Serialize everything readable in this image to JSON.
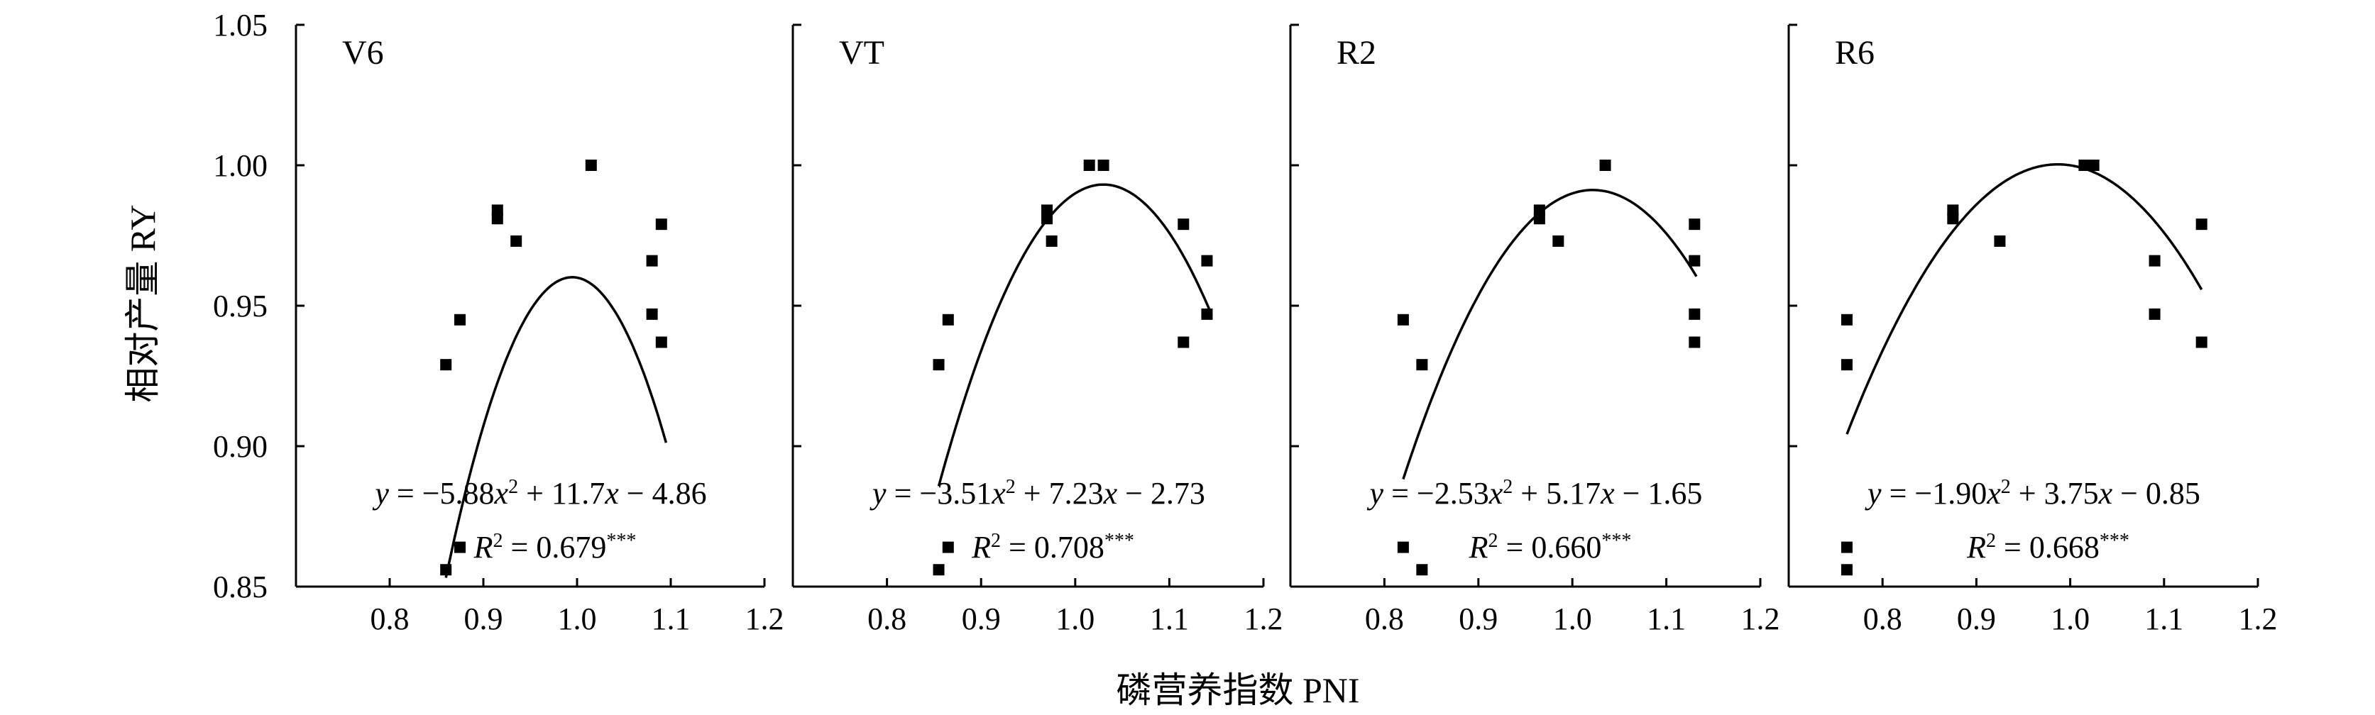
{
  "figure": {
    "ylabel": "相对产量 RY",
    "xlabel": "磷营养指数  PNI"
  },
  "chart_data": [
    {
      "type": "scatter",
      "panel_label": "V6",
      "xlim": [
        0.7,
        1.2
      ],
      "ylim": [
        0.85,
        1.05
      ],
      "x_ticks": [
        "0.8",
        "0.9",
        "1.0",
        "1.1",
        "1.2"
      ],
      "y_ticks": [
        "0.85",
        "0.90",
        "0.95",
        "1.00",
        "1.05"
      ],
      "points": [
        [
          0.86,
          0.856
        ],
        [
          0.86,
          0.929
        ],
        [
          0.875,
          0.864
        ],
        [
          0.875,
          0.945
        ],
        [
          0.915,
          0.981
        ],
        [
          0.915,
          0.984
        ],
        [
          0.935,
          0.973
        ],
        [
          1.015,
          1.0
        ],
        [
          1.08,
          0.966
        ],
        [
          1.08,
          0.947
        ],
        [
          1.09,
          0.979
        ],
        [
          1.09,
          0.937
        ]
      ],
      "fit": {
        "a": -5.88,
        "b": 11.7,
        "c": -4.86,
        "x_range": [
          0.86,
          1.095
        ]
      },
      "equation": {
        "lhs": "y",
        "rest": " = −5.88",
        "x1": "x",
        "sup": "2",
        "mid": " + 11.7",
        "x2": "x",
        "tail": " − 4.86"
      },
      "r2": {
        "r": "R",
        "sup": "2",
        "value": " = 0.679",
        "stars": "***"
      }
    },
    {
      "type": "scatter",
      "panel_label": "VT",
      "xlim": [
        0.7,
        1.2
      ],
      "ylim": [
        0.85,
        1.05
      ],
      "x_ticks": [
        "0.8",
        "0.9",
        "1.0",
        "1.1",
        "1.2"
      ],
      "y_ticks": [
        "0.85",
        "0.90",
        "0.95",
        "1.00",
        "1.05"
      ],
      "points": [
        [
          0.855,
          0.856
        ],
        [
          0.855,
          0.929
        ],
        [
          0.865,
          0.864
        ],
        [
          0.865,
          0.945
        ],
        [
          0.97,
          0.981
        ],
        [
          0.97,
          0.984
        ],
        [
          0.975,
          0.973
        ],
        [
          1.015,
          1.0
        ],
        [
          1.03,
          1.0
        ],
        [
          1.115,
          0.979
        ],
        [
          1.115,
          0.937
        ],
        [
          1.14,
          0.966
        ],
        [
          1.14,
          0.947
        ]
      ],
      "fit": {
        "a": -3.51,
        "b": 7.23,
        "c": -2.73,
        "x_range": [
          0.855,
          1.145
        ]
      },
      "equation": {
        "lhs": "y",
        "rest": " = −3.51",
        "x1": "x",
        "sup": "2",
        "mid": " + 7.23",
        "x2": "x",
        "tail": " − 2.73"
      },
      "r2": {
        "r": "R",
        "sup": "2",
        "value": " = 0.708",
        "stars": "***"
      }
    },
    {
      "type": "scatter",
      "panel_label": "R2",
      "xlim": [
        0.7,
        1.2
      ],
      "ylim": [
        0.85,
        1.05
      ],
      "x_ticks": [
        "0.8",
        "0.9",
        "1.0",
        "1.1",
        "1.2"
      ],
      "y_ticks": [
        "0.85",
        "0.90",
        "0.95",
        "1.00",
        "1.05"
      ],
      "points": [
        [
          0.82,
          0.864
        ],
        [
          0.82,
          0.945
        ],
        [
          0.84,
          0.856
        ],
        [
          0.84,
          0.929
        ],
        [
          0.965,
          0.981
        ],
        [
          0.965,
          0.984
        ],
        [
          0.985,
          0.973
        ],
        [
          1.035,
          1.0
        ],
        [
          1.13,
          0.979
        ],
        [
          1.13,
          0.966
        ],
        [
          1.13,
          0.947
        ],
        [
          1.13,
          0.937
        ]
      ],
      "fit": {
        "a": -2.53,
        "b": 5.17,
        "c": -1.65,
        "x_range": [
          0.82,
          1.132
        ]
      },
      "equation": {
        "lhs": "y",
        "rest": " = −2.53",
        "x1": "x",
        "sup": "2",
        "mid": " + 5.17",
        "x2": "x",
        "tail": " − 1.65"
      },
      "r2": {
        "r": "R",
        "sup": "2",
        "value": " = 0.660",
        "stars": "***"
      }
    },
    {
      "type": "scatter",
      "panel_label": "R6",
      "xlim": [
        0.7,
        1.2
      ],
      "ylim": [
        0.85,
        1.05
      ],
      "x_ticks": [
        "0.8",
        "0.9",
        "1.0",
        "1.1",
        "1.2"
      ],
      "y_ticks": [
        "0.85",
        "0.90",
        "0.95",
        "1.00",
        "1.05"
      ],
      "points": [
        [
          0.762,
          0.856
        ],
        [
          0.762,
          0.864
        ],
        [
          0.762,
          0.929
        ],
        [
          0.762,
          0.945
        ],
        [
          0.875,
          0.981
        ],
        [
          0.875,
          0.984
        ],
        [
          0.925,
          0.973
        ],
        [
          1.015,
          1.0
        ],
        [
          1.025,
          1.0
        ],
        [
          1.09,
          0.966
        ],
        [
          1.09,
          0.947
        ],
        [
          1.14,
          0.979
        ],
        [
          1.14,
          0.937
        ]
      ],
      "fit": {
        "a": -1.9,
        "b": 3.75,
        "c": -0.85,
        "x_range": [
          0.762,
          1.14
        ]
      },
      "equation": {
        "lhs": "y",
        "rest": " = −1.90",
        "x1": "x",
        "sup": "2",
        "mid": " + 3.75",
        "x2": "x",
        "tail": " − 0.85"
      },
      "r2": {
        "r": "R",
        "sup": "2",
        "value": " = 0.668",
        "stars": "***"
      }
    }
  ]
}
